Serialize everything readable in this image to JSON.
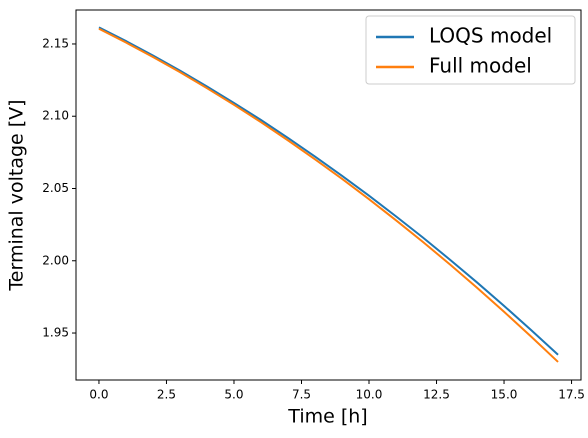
{
  "chart_data": {
    "type": "line",
    "xlabel": "Time [h]",
    "ylabel": "Terminal voltage [V]",
    "x": [
      0,
      1,
      2,
      3,
      4,
      5,
      6,
      7,
      8,
      9,
      10,
      11,
      12,
      13,
      14,
      15,
      16,
      17
    ],
    "series": [
      {
        "name": "LOQS model",
        "color": "#1f77b4",
        "values": [
          2.1615,
          2.152,
          2.142,
          2.1316,
          2.1206,
          2.1092,
          2.0974,
          2.085,
          2.0721,
          2.0588,
          2.045,
          2.0307,
          2.016,
          2.0007,
          1.985,
          1.9688,
          1.9521,
          1.935
        ]
      },
      {
        "name": "Full model",
        "color": "#ff7f0e",
        "values": [
          2.1605,
          2.151,
          2.141,
          2.1305,
          2.1194,
          2.1079,
          2.0959,
          2.0833,
          2.0702,
          2.0567,
          2.0426,
          2.028,
          2.013,
          1.9974,
          1.9813,
          1.9647,
          1.9476,
          1.93
        ]
      }
    ],
    "xlim": [
      -0.85,
      17.85
    ],
    "xticks": [
      {
        "value": 0,
        "label": "0.0"
      },
      2.5,
      {
        "value": 5,
        "label": "5.0"
      },
      7.5,
      {
        "value": 10,
        "label": "10.0"
      },
      12.5,
      {
        "value": 15,
        "label": "15.0"
      },
      17.5
    ],
    "ylim": [
      1.9175,
      2.1735
    ],
    "yticks": [
      1.95,
      {
        "value": 2,
        "label": "2.00"
      },
      2.05,
      {
        "value": 2.1,
        "label": "2.10"
      },
      2.15
    ],
    "grid": false,
    "legend": "upper right"
  }
}
